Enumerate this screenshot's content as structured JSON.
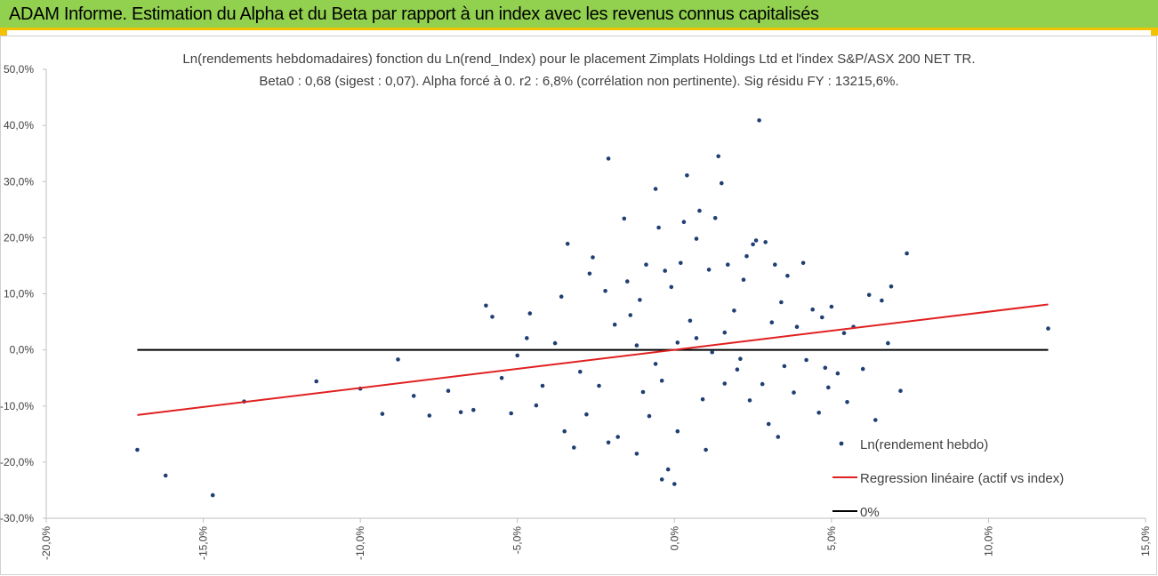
{
  "header": {
    "title": "ADAM Informe. Estimation du Alpha et du Beta par rapport à un index avec les revenus connus capitalisés"
  },
  "colors": {
    "header_bg": "#92d050",
    "header_border": "#f2c200",
    "points": "#1f3f73",
    "regression": "#e02020",
    "zero_line": "#000000"
  },
  "chart_data": {
    "type": "scatter",
    "title": "Ln(rendements hebdomadaires) fonction du Ln(rend_Index) pour le placement Zimplats Holdings Ltd et l'index S&P/ASX 200 NET TR.",
    "subtitle": "Beta0 : 0,68 (sigest : 0,07). Alpha forcé à 0. r2 : 6,8% (corrélation non pertinente). Sig résidu FY : 13215,6%.",
    "xlabel": "",
    "ylabel": "",
    "xlim": [
      -0.2,
      0.15
    ],
    "ylim": [
      -0.3,
      0.5
    ],
    "x_ticks": [
      "-20,0%",
      "-15,0%",
      "-10,0%",
      "-5,0%",
      "0,0%",
      "5,0%",
      "10,0%",
      "15,0%"
    ],
    "y_ticks": [
      "50,0%",
      "40,0%",
      "30,0%",
      "20,0%",
      "10,0%",
      "0,0%",
      "-10,0%",
      "-20,0%",
      "-30,0%"
    ],
    "grid": false,
    "legend_position": "bottom-right",
    "legend": [
      "Ln(rendement hebdo)",
      "Regression linéaire (actif vs index)",
      "0%"
    ],
    "series": [
      {
        "name": "Ln(rendement hebdo)",
        "kind": "scatter",
        "points": [
          [
            -0.171,
            -0.178
          ],
          [
            -0.162,
            -0.224
          ],
          [
            -0.147,
            -0.259
          ],
          [
            -0.137,
            -0.092
          ],
          [
            -0.114,
            -0.056
          ],
          [
            -0.1,
            -0.069
          ],
          [
            -0.093,
            -0.114
          ],
          [
            -0.088,
            -0.017
          ],
          [
            -0.083,
            -0.082
          ],
          [
            -0.078,
            -0.117
          ],
          [
            -0.072,
            -0.073
          ],
          [
            -0.068,
            -0.111
          ],
          [
            -0.064,
            -0.107
          ],
          [
            -0.06,
            0.079
          ],
          [
            -0.058,
            0.059
          ],
          [
            -0.055,
            -0.05
          ],
          [
            -0.052,
            -0.113
          ],
          [
            -0.05,
            -0.01
          ],
          [
            -0.047,
            0.021
          ],
          [
            -0.046,
            0.065
          ],
          [
            -0.044,
            -0.099
          ],
          [
            -0.042,
            -0.064
          ],
          [
            -0.038,
            0.012
          ],
          [
            -0.036,
            0.095
          ],
          [
            -0.035,
            -0.145
          ],
          [
            -0.034,
            0.189
          ],
          [
            -0.032,
            -0.174
          ],
          [
            -0.03,
            -0.039
          ],
          [
            -0.028,
            -0.115
          ],
          [
            -0.027,
            0.136
          ],
          [
            -0.026,
            0.165
          ],
          [
            -0.024,
            -0.064
          ],
          [
            -0.022,
            0.105
          ],
          [
            -0.021,
            -0.165
          ],
          [
            -0.019,
            0.045
          ],
          [
            -0.018,
            -0.155
          ],
          [
            -0.016,
            0.234
          ],
          [
            -0.015,
            0.122
          ],
          [
            -0.014,
            0.062
          ],
          [
            -0.012,
            -0.185
          ],
          [
            -0.021,
            0.341
          ],
          [
            -0.011,
            0.089
          ],
          [
            -0.01,
            -0.075
          ],
          [
            -0.009,
            0.152
          ],
          [
            -0.008,
            -0.118
          ],
          [
            -0.006,
            0.287
          ],
          [
            -0.005,
            0.218
          ],
          [
            -0.004,
            -0.231
          ],
          [
            -0.004,
            -0.055
          ],
          [
            -0.003,
            0.141
          ],
          [
            -0.002,
            -0.213
          ],
          [
            -0.001,
            0.112
          ],
          [
            0.0,
            -0.239
          ],
          [
            0.001,
            -0.145
          ],
          [
            0.002,
            0.155
          ],
          [
            0.003,
            0.228
          ],
          [
            0.004,
            0.311
          ],
          [
            0.005,
            0.052
          ],
          [
            0.007,
            0.198
          ],
          [
            0.008,
            0.248
          ],
          [
            0.009,
            -0.088
          ],
          [
            0.01,
            -0.178
          ],
          [
            0.011,
            0.143
          ],
          [
            0.013,
            0.235
          ],
          [
            0.014,
            0.345
          ],
          [
            0.015,
            0.297
          ],
          [
            0.016,
            -0.06
          ],
          [
            0.017,
            0.152
          ],
          [
            0.019,
            0.07
          ],
          [
            0.02,
            -0.035
          ],
          [
            0.022,
            0.125
          ],
          [
            0.023,
            0.167
          ],
          [
            0.024,
            -0.09
          ],
          [
            0.025,
            0.188
          ],
          [
            0.026,
            0.195
          ],
          [
            0.027,
            0.409
          ],
          [
            0.028,
            -0.061
          ],
          [
            0.029,
            0.192
          ],
          [
            0.03,
            -0.132
          ],
          [
            0.031,
            0.049
          ],
          [
            0.032,
            0.152
          ],
          [
            0.033,
            -0.155
          ],
          [
            0.034,
            0.085
          ],
          [
            0.035,
            -0.029
          ],
          [
            0.036,
            0.132
          ],
          [
            0.038,
            -0.076
          ],
          [
            0.039,
            0.041
          ],
          [
            0.041,
            0.155
          ],
          [
            0.042,
            -0.018
          ],
          [
            0.044,
            0.072
          ],
          [
            0.046,
            -0.112
          ],
          [
            0.047,
            0.058
          ],
          [
            0.048,
            -0.032
          ],
          [
            0.049,
            -0.067
          ],
          [
            0.05,
            0.077
          ],
          [
            0.052,
            -0.042
          ],
          [
            0.054,
            0.03
          ],
          [
            0.055,
            -0.093
          ],
          [
            0.057,
            0.041
          ],
          [
            0.06,
            -0.034
          ],
          [
            0.062,
            0.098
          ],
          [
            0.064,
            -0.125
          ],
          [
            0.066,
            0.088
          ],
          [
            0.068,
            0.012
          ],
          [
            0.069,
            0.113
          ],
          [
            0.072,
            -0.073
          ],
          [
            0.074,
            0.172
          ],
          [
            0.119,
            0.038
          ],
          [
            0.007,
            0.021
          ],
          [
            0.012,
            -0.004
          ],
          [
            0.001,
            0.013
          ],
          [
            -0.006,
            -0.025
          ],
          [
            0.016,
            0.031
          ],
          [
            -0.012,
            0.008
          ],
          [
            0.021,
            -0.016
          ]
        ]
      },
      {
        "name": "Regression linéaire (actif vs index)",
        "kind": "line",
        "x": [
          -0.171,
          0.119
        ],
        "y": [
          -0.116,
          0.081
        ]
      },
      {
        "name": "0%",
        "kind": "line",
        "x": [
          -0.171,
          0.119
        ],
        "y": [
          0,
          0
        ]
      }
    ]
  }
}
